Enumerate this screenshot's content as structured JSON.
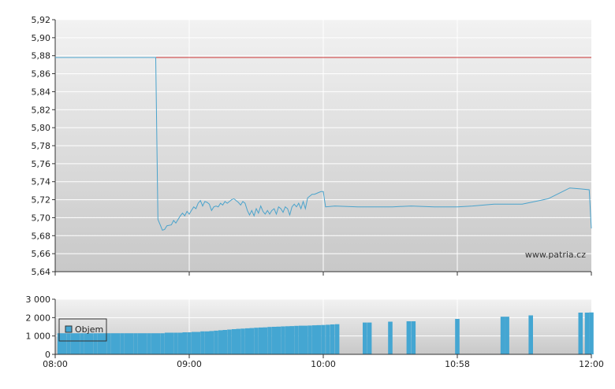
{
  "watermark": "www.patria.cz",
  "colors": {
    "price_line": "#4aa3cc",
    "reference_line": "#cc3333",
    "volume_bar": "#44a6d2",
    "grid": "#ffffff",
    "axis": "#333333"
  },
  "chart_data": [
    {
      "type": "line",
      "title": "",
      "xlabel": "",
      "ylabel": "",
      "x_ticks": [
        "08:00",
        "09:00",
        "10:00",
        "10:58",
        "12:00"
      ],
      "y_ticks": [
        "5,92",
        "5,90",
        "5,88",
        "5,86",
        "5,84",
        "5,82",
        "5,80",
        "5,78",
        "5,76",
        "5,74",
        "5,72",
        "5,70",
        "5,68",
        "5,66",
        "5,64"
      ],
      "ylim": [
        5.64,
        5.92
      ],
      "grid": true,
      "reference_value": 5.878,
      "series": [
        {
          "points": [
            [
              "08:00",
              5.878
            ],
            [
              "08:45",
              5.878
            ],
            [
              "08:46",
              5.698
            ],
            [
              "08:47",
              5.692
            ],
            [
              "08:48",
              5.686
            ],
            [
              "08:49",
              5.687
            ],
            [
              "08:50",
              5.691
            ],
            [
              "08:52",
              5.692
            ],
            [
              "08:53",
              5.697
            ],
            [
              "08:54",
              5.694
            ],
            [
              "08:55",
              5.698
            ],
            [
              "08:56",
              5.702
            ],
            [
              "08:57",
              5.705
            ],
            [
              "08:58",
              5.702
            ],
            [
              "08:59",
              5.707
            ],
            [
              "09:00",
              5.704
            ],
            [
              "09:01",
              5.708
            ],
            [
              "09:02",
              5.712
            ],
            [
              "09:03",
              5.71
            ],
            [
              "09:04",
              5.716
            ],
            [
              "09:05",
              5.719
            ],
            [
              "09:06",
              5.713
            ],
            [
              "09:07",
              5.718
            ],
            [
              "09:08",
              5.717
            ],
            [
              "09:09",
              5.715
            ],
            [
              "09:10",
              5.708
            ],
            [
              "09:11",
              5.712
            ],
            [
              "09:12",
              5.713
            ],
            [
              "09:13",
              5.712
            ],
            [
              "09:14",
              5.716
            ],
            [
              "09:15",
              5.714
            ],
            [
              "09:16",
              5.718
            ],
            [
              "09:17",
              5.716
            ],
            [
              "09:18",
              5.718
            ],
            [
              "09:19",
              5.72
            ],
            [
              "09:20",
              5.721
            ],
            [
              "09:21",
              5.719
            ],
            [
              "09:22",
              5.717
            ],
            [
              "09:23",
              5.714
            ],
            [
              "09:24",
              5.718
            ],
            [
              "09:25",
              5.716
            ],
            [
              "09:26",
              5.708
            ],
            [
              "09:27",
              5.703
            ],
            [
              "09:28",
              5.708
            ],
            [
              "09:29",
              5.702
            ],
            [
              "09:30",
              5.71
            ],
            [
              "09:31",
              5.705
            ],
            [
              "09:32",
              5.713
            ],
            [
              "09:33",
              5.707
            ],
            [
              "09:34",
              5.704
            ],
            [
              "09:35",
              5.708
            ],
            [
              "09:36",
              5.704
            ],
            [
              "09:37",
              5.708
            ],
            [
              "09:38",
              5.71
            ],
            [
              "09:39",
              5.704
            ],
            [
              "09:40",
              5.712
            ],
            [
              "09:41",
              5.71
            ],
            [
              "09:42",
              5.706
            ],
            [
              "09:43",
              5.712
            ],
            [
              "09:44",
              5.71
            ],
            [
              "09:45",
              5.703
            ],
            [
              "09:46",
              5.712
            ],
            [
              "09:47",
              5.715
            ],
            [
              "09:48",
              5.712
            ],
            [
              "09:49",
              5.716
            ],
            [
              "09:50",
              5.71
            ],
            [
              "09:51",
              5.718
            ],
            [
              "09:52",
              5.71
            ],
            [
              "09:53",
              5.722
            ],
            [
              "09:54",
              5.724
            ],
            [
              "09:55",
              5.726
            ],
            [
              "09:56",
              5.726
            ],
            [
              "09:57",
              5.727
            ],
            [
              "09:58",
              5.728
            ],
            [
              "09:59",
              5.729
            ],
            [
              "10:00",
              5.729
            ],
            [
              "10:01",
              5.712
            ],
            [
              "10:05",
              5.713
            ],
            [
              "10:15",
              5.712
            ],
            [
              "10:30",
              5.712
            ],
            [
              "10:38",
              5.713
            ],
            [
              "10:48",
              5.712
            ],
            [
              "10:58",
              5.712
            ],
            [
              "11:05",
              5.713
            ],
            [
              "11:15",
              5.715
            ],
            [
              "11:28",
              5.715
            ],
            [
              "11:40",
              5.721
            ],
            [
              "11:50",
              5.733
            ],
            [
              "11:55",
              5.732
            ],
            [
              "11:59",
              5.731
            ],
            [
              "12:00",
              5.688
            ]
          ]
        }
      ]
    },
    {
      "type": "bar",
      "title": "",
      "xlabel": "",
      "ylabel": "",
      "x_ticks": [
        "08:00",
        "09:00",
        "10:00",
        "10:58",
        "12:00"
      ],
      "y_ticks": [
        "3 000",
        "2 000",
        "1 000",
        "0"
      ],
      "ylim": [
        0,
        3000
      ],
      "grid": true,
      "legend": {
        "position": "top-left",
        "entries": [
          "Objem"
        ]
      },
      "series": [
        {
          "name": "Objem",
          "points": [
            [
              "08:02",
              1150
            ],
            [
              "08:04",
              1150
            ],
            [
              "08:06",
              1150
            ],
            [
              "08:08",
              1150
            ],
            [
              "08:10",
              1150
            ],
            [
              "08:12",
              1150
            ],
            [
              "08:14",
              1150
            ],
            [
              "08:16",
              1150
            ],
            [
              "08:18",
              1150
            ],
            [
              "08:20",
              1150
            ],
            [
              "08:22",
              1150
            ],
            [
              "08:24",
              1150
            ],
            [
              "08:26",
              1150
            ],
            [
              "08:28",
              1150
            ],
            [
              "08:30",
              1150
            ],
            [
              "08:32",
              1150
            ],
            [
              "08:34",
              1150
            ],
            [
              "08:36",
              1150
            ],
            [
              "08:38",
              1150
            ],
            [
              "08:40",
              1150
            ],
            [
              "08:42",
              1150
            ],
            [
              "08:44",
              1150
            ],
            [
              "08:46",
              1150
            ],
            [
              "08:48",
              1150
            ],
            [
              "08:50",
              1180
            ],
            [
              "08:52",
              1180
            ],
            [
              "08:54",
              1180
            ],
            [
              "08:56",
              1180
            ],
            [
              "08:58",
              1200
            ],
            [
              "09:00",
              1200
            ],
            [
              "09:02",
              1220
            ],
            [
              "09:04",
              1220
            ],
            [
              "09:06",
              1250
            ],
            [
              "09:08",
              1250
            ],
            [
              "09:10",
              1270
            ],
            [
              "09:12",
              1290
            ],
            [
              "09:14",
              1310
            ],
            [
              "09:16",
              1330
            ],
            [
              "09:18",
              1350
            ],
            [
              "09:20",
              1370
            ],
            [
              "09:22",
              1390
            ],
            [
              "09:24",
              1400
            ],
            [
              "09:26",
              1420
            ],
            [
              "09:28",
              1430
            ],
            [
              "09:30",
              1450
            ],
            [
              "09:32",
              1460
            ],
            [
              "09:34",
              1470
            ],
            [
              "09:36",
              1490
            ],
            [
              "09:38",
              1500
            ],
            [
              "09:40",
              1510
            ],
            [
              "09:42",
              1520
            ],
            [
              "09:44",
              1530
            ],
            [
              "09:46",
              1540
            ],
            [
              "09:48",
              1550
            ],
            [
              "09:50",
              1560
            ],
            [
              "09:52",
              1560
            ],
            [
              "09:54",
              1570
            ],
            [
              "09:56",
              1580
            ],
            [
              "09:58",
              1590
            ],
            [
              "10:00",
              1600
            ],
            [
              "10:02",
              1610
            ],
            [
              "10:04",
              1630
            ],
            [
              "10:06",
              1640
            ],
            [
              "10:18",
              1730
            ],
            [
              "10:20",
              1730
            ],
            [
              "10:29",
              1780
            ],
            [
              "10:37",
              1800
            ],
            [
              "10:39",
              1800
            ],
            [
              "10:58",
              1930
            ],
            [
              "11:19",
              2050
            ],
            [
              "11:21",
              2050
            ],
            [
              "11:32",
              2120
            ],
            [
              "11:55",
              2270
            ],
            [
              "11:58",
              2270
            ],
            [
              "12:00",
              2280
            ]
          ]
        }
      ]
    }
  ]
}
